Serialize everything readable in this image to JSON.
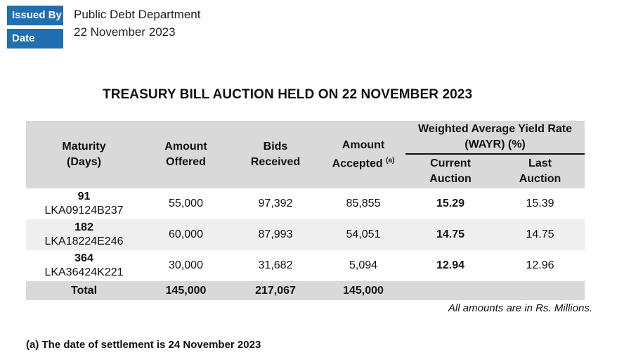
{
  "header": {
    "issued_by_label": "Issued By",
    "issued_by_value": "Public Debt Department",
    "date_label": "Date",
    "date_value": "22 November 2023"
  },
  "title": "TREASURY BILL AUCTION HELD ON 22 NOVEMBER 2023",
  "table": {
    "col_maturity": "Maturity",
    "col_maturity_sub": "(Days)",
    "col_offered": "Amount",
    "col_offered_sub": "Offered",
    "col_bids": "Bids",
    "col_bids_sub": "Received",
    "col_accepted": "Amount",
    "col_accepted_sub": "Accepted",
    "col_accepted_sup": "(a)",
    "col_wayr": "Weighted Average Yield Rate",
    "col_wayr_sub": "(WAYR) (%)",
    "col_current": "Current",
    "col_current_sub": "Auction",
    "col_last": "Last",
    "col_last_sub": "Auction",
    "rows": [
      {
        "days": "91",
        "code": "LKA09124B237",
        "offered": "55,000",
        "bids": "97,392",
        "accepted": "85,855",
        "current": "15.29",
        "last": "15.39"
      },
      {
        "days": "182",
        "code": "LKA18224E246",
        "offered": "60,000",
        "bids": "87,993",
        "accepted": "54,051",
        "current": "14.75",
        "last": "14.75"
      },
      {
        "days": "364",
        "code": "LKA36424K221",
        "offered": "30,000",
        "bids": "31,682",
        "accepted": "5,094",
        "current": "12.94",
        "last": "12.96"
      }
    ],
    "total": {
      "label": "Total",
      "offered": "145,000",
      "bids": "217,067",
      "accepted": "145,000"
    }
  },
  "notes": {
    "amounts": "All amounts are in Rs. Millions.",
    "settlement": "(a) The date of settlement is 24 November 2023"
  }
}
